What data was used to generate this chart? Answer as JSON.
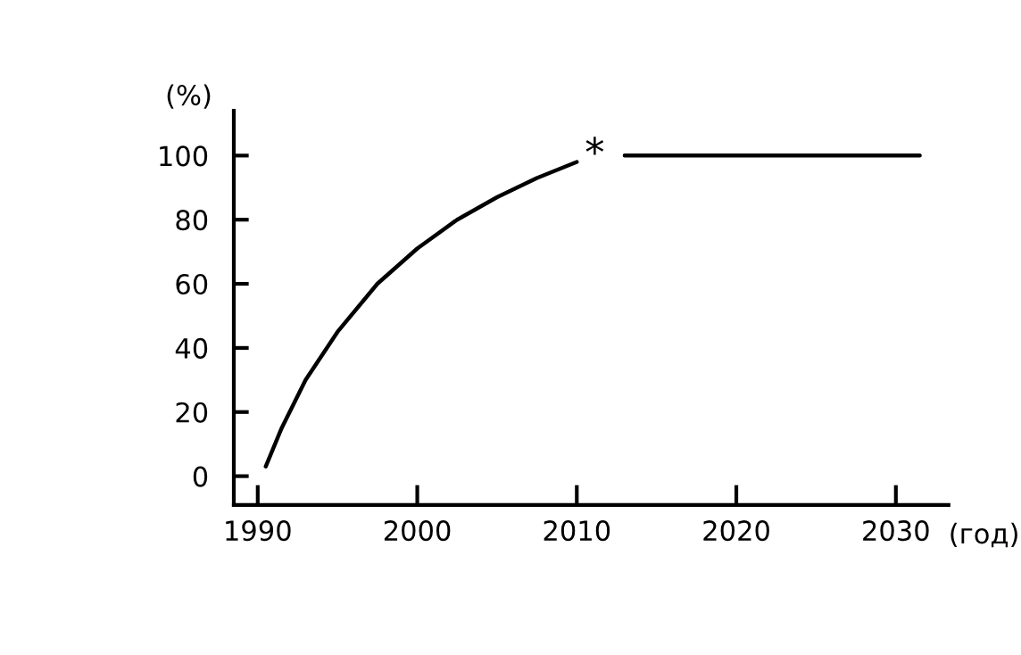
{
  "chart_data": {
    "type": "line",
    "ylabel": "(%)",
    "xlabel": "(год)",
    "xlim": [
      1988.5,
      2033.3
    ],
    "xticks": [
      1990,
      2000,
      2010,
      2020,
      2030
    ],
    "ylim": [
      -9,
      114
    ],
    "yticks": [
      0,
      20,
      40,
      60,
      80,
      100
    ],
    "series": [
      {
        "color": "#000000",
        "x": [
          1990.5,
          1991.5,
          1993,
          1995,
          1997.5,
          2000,
          2002.5,
          2005,
          2007.5,
          2010,
          2011.5,
          2013,
          2020,
          2031.5
        ],
        "values": [
          3,
          15,
          30,
          45,
          60,
          71,
          80,
          87,
          93,
          98,
          null,
          100,
          100,
          100
        ]
      }
    ],
    "annotations": [
      "*"
    ],
    "grid": false,
    "legend": false,
    "marker": "none",
    "line_style": "solid"
  }
}
